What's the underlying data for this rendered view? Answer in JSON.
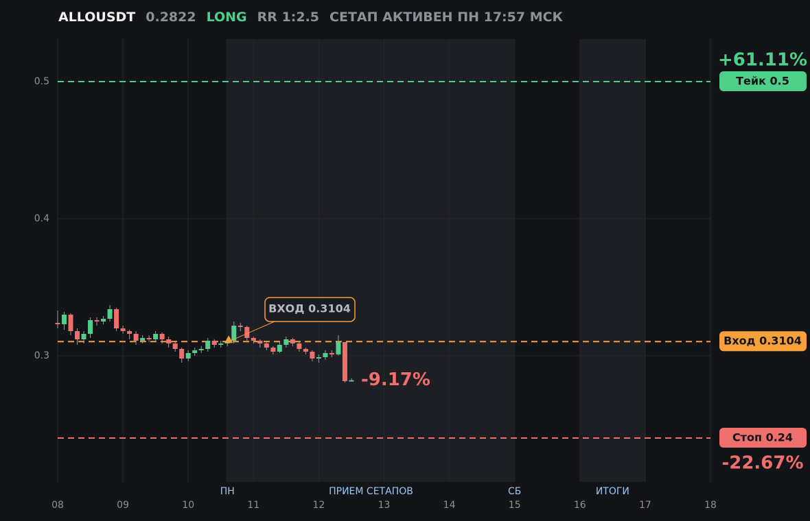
{
  "header": {
    "symbol": "ALLOUSDT",
    "price": "0.2822",
    "side": "LONG",
    "rr": "RR 1:2.5",
    "status": "СЕТАП АКТИВЕН ПН 17:57 МСК"
  },
  "chart_data": {
    "type": "candlestick",
    "x": [
      8.0,
      8.1,
      8.2,
      8.3,
      8.4,
      8.5,
      8.6,
      8.7,
      8.8,
      8.9,
      9.0,
      9.1,
      9.2,
      9.3,
      9.4,
      9.5,
      9.6,
      9.7,
      9.8,
      9.9,
      10.0,
      10.1,
      10.2,
      10.3,
      10.4,
      10.5,
      10.6,
      10.7,
      10.8,
      10.9,
      11.0,
      11.1,
      11.2,
      11.3,
      11.4,
      11.5,
      11.6,
      11.7,
      11.8,
      11.9,
      12.0,
      12.1,
      12.2,
      12.3,
      12.4,
      12.5
    ],
    "open": [
      0.324,
      0.323,
      0.33,
      0.318,
      0.312,
      0.316,
      0.326,
      0.325,
      0.327,
      0.334,
      0.32,
      0.318,
      0.316,
      0.311,
      0.313,
      0.312,
      0.316,
      0.312,
      0.309,
      0.305,
      0.298,
      0.302,
      0.304,
      0.305,
      0.311,
      0.308,
      0.309,
      0.311,
      0.322,
      0.321,
      0.313,
      0.311,
      0.309,
      0.306,
      0.303,
      0.308,
      0.312,
      0.309,
      0.305,
      0.303,
      0.298,
      0.299,
      0.302,
      0.301,
      0.31,
      0.2815
    ],
    "high": [
      0.333,
      0.332,
      0.331,
      0.32,
      0.318,
      0.328,
      0.328,
      0.329,
      0.337,
      0.335,
      0.322,
      0.319,
      0.318,
      0.315,
      0.315,
      0.318,
      0.317,
      0.314,
      0.31,
      0.306,
      0.304,
      0.306,
      0.307,
      0.313,
      0.312,
      0.311,
      0.313,
      0.325,
      0.324,
      0.322,
      0.314,
      0.312,
      0.31,
      0.307,
      0.31,
      0.314,
      0.313,
      0.31,
      0.306,
      0.304,
      0.301,
      0.304,
      0.304,
      0.315,
      0.31,
      0.2835
    ],
    "low": [
      0.32,
      0.319,
      0.315,
      0.308,
      0.309,
      0.313,
      0.322,
      0.323,
      0.325,
      0.318,
      0.316,
      0.312,
      0.308,
      0.309,
      0.31,
      0.31,
      0.309,
      0.306,
      0.303,
      0.295,
      0.296,
      0.3,
      0.302,
      0.303,
      0.306,
      0.306,
      0.307,
      0.309,
      0.318,
      0.311,
      0.309,
      0.306,
      0.304,
      0.301,
      0.302,
      0.306,
      0.307,
      0.303,
      0.301,
      0.296,
      0.295,
      0.297,
      0.299,
      0.3,
      0.2805,
      0.2812
    ],
    "close": [
      0.323,
      0.33,
      0.318,
      0.312,
      0.316,
      0.326,
      0.325,
      0.327,
      0.334,
      0.32,
      0.318,
      0.316,
      0.311,
      0.313,
      0.312,
      0.316,
      0.312,
      0.309,
      0.305,
      0.298,
      0.302,
      0.304,
      0.305,
      0.311,
      0.308,
      0.309,
      0.311,
      0.322,
      0.321,
      0.313,
      0.311,
      0.309,
      0.306,
      0.303,
      0.308,
      0.312,
      0.309,
      0.305,
      0.303,
      0.298,
      0.299,
      0.302,
      0.301,
      0.31,
      0.2815,
      0.2822
    ],
    "up_color": "#4fd08a",
    "down_color": "#ef6f6c",
    "change_label": "-9.17%",
    "take": {
      "value": 0.5,
      "label": "Тейк 0.5",
      "pct_label": "+61.11%",
      "color": "#4fd08a"
    },
    "entry": {
      "value": 0.3104,
      "label": "Вход 0.3104",
      "x": 10.62,
      "callout": "ВХОД 0.3104",
      "color": "#f5a03a"
    },
    "stop": {
      "value": 0.24,
      "label": "Стоп 0.24",
      "pct_label": "-22.67%",
      "color": "#ef6f6c"
    },
    "bands": [
      [
        10.58,
        15
      ],
      [
        16,
        17
      ]
    ],
    "session_labels": [
      {
        "x": 10.6,
        "label": "ПН"
      },
      {
        "x": 12.8,
        "label": "ПРИЕМ СЕТАПОВ"
      },
      {
        "x": 15,
        "label": "СБ"
      },
      {
        "x": 16.5,
        "label": "ИТОГИ"
      }
    ],
    "xlim": [
      8,
      18
    ],
    "ylim": [
      0.208,
      0.531
    ],
    "xticks": [
      {
        "value": 8,
        "label": "08"
      },
      {
        "value": 9,
        "label": "09"
      },
      10,
      11,
      12,
      13,
      14,
      15,
      16,
      17,
      18
    ],
    "yticks": [
      0.3,
      0.4,
      0.5
    ],
    "grid": true
  }
}
